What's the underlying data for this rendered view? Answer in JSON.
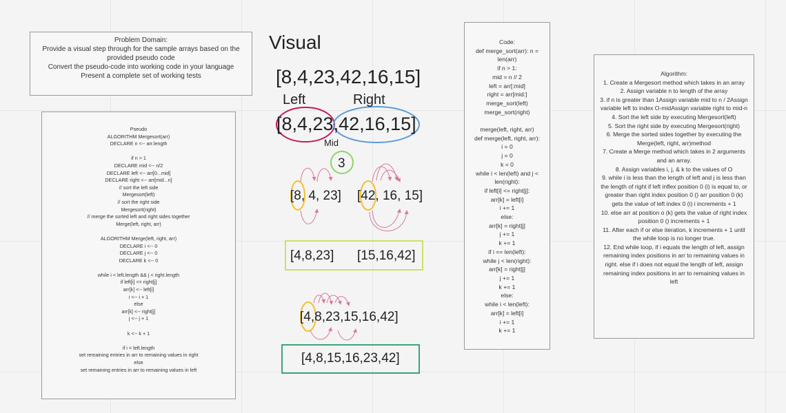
{
  "problem_domain": {
    "lines": [
      "Problem Domain:",
      "Provide a visual step through for the sample arrays based on the",
      "provided pseudo code",
      "Convert the pseudo-code into working code in your language",
      "Present a complete set of working tests"
    ]
  },
  "pseudo": {
    "lines": [
      "Pseudo",
      "ALGORITHM Mergesort(arr)",
      "DECLARE n <-- arr.length",
      "",
      "if n > 1",
      "DECLARE mid <-- n/2",
      "DECLARE left <-- arr[0...mid]",
      "DECLARE right <-- arr[mid...n]",
      "// sort the left side",
      "Mergesort(left)",
      "// sort the right side",
      "Mergesort(right)",
      "// merge the sorted left and right sides together",
      "Merge(left, right, arr)",
      "",
      "ALGORITHM Merge(left, right, arr)",
      "DECLARE i <-- 0",
      "DECLARE j <-- 0",
      "DECLARE k <-- 0",
      "",
      "while i < left.length && j < right.length",
      "if left[i] <= right[j]",
      "arr[k] <-- left[i]",
      "i <-- i + 1",
      "else",
      "arr[k] <-- right[j]",
      "j <-- j + 1",
      "",
      "k <-- k + 1",
      "",
      "if i = left.length",
      "set remaining entries in arr to remaining values in right",
      "else",
      "set remaining entries in arr to remaining values in left"
    ]
  },
  "visual": {
    "title": "Visual",
    "array": "[8,4,23,42,16,15]",
    "left_label": "Left",
    "right_label": "Right",
    "array_split": "[8,4,23,42,16,15]",
    "mid_label": "Mid",
    "mid_value": "3",
    "left_half": "[8, 4, 23]",
    "right_half": "[42, 16, 15]",
    "sorted_left": "[4,8,23]",
    "sorted_right": "[15,16,42]",
    "merged_raw": "[4,8,23,15,16,42]",
    "final": "[4,8,15,16,23,42]",
    "colors": {
      "left_circle": "#c2185b",
      "right_circle": "#5b9bd5",
      "mid_circle": "#8ed36a",
      "pointer_circle": "#f2c12e",
      "arrows": "#d9789a",
      "sorted_box": "#c9e265",
      "final_box": "#3aa678"
    }
  },
  "code": {
    "lines": [
      "Code:",
      "def merge_sort(arr): n =",
      "len(arr)",
      "if n > 1:",
      "mid = n // 2",
      "left = arr[:mid]",
      "right = arr[mid:]",
      "merge_sort(left)",
      "merge_sort(right)",
      "",
      "merge(left, right, arr)",
      "def merge(left, right, arr):",
      "i = 0",
      "j = 0",
      "k = 0",
      "while i < len(left) and j <",
      "len(right):",
      "if left[i] <= right[j]:",
      "arr[k] = left[i]",
      "i += 1",
      "else:",
      "arr[k] = right[j]",
      "j += 1",
      "k += 1",
      "if i == len(left):",
      "while j < len(right):",
      "arr[k] = right[j]",
      "j += 1",
      "k += 1",
      "else:",
      "while i < len(left):",
      "arr[k] = left[i]",
      "i += 1",
      "k += 1"
    ]
  },
  "algorithm": {
    "lines": [
      "Algorithm:",
      "1. Create a Mergesort method which takes in an array",
      "2. Assign variable n to length of the array",
      "3. if n is greater than 1Assign variable mid to n / 2Assign variable left to index O-midAssign variable right to mid-n",
      "4. Sort the left side by executing Mergesort(left)",
      "5. Sort the right side by executing Mergesort(right)",
      "6. Merge the sorted sides together by executing the Merge(left, right, arr)method",
      "7. Create a Merge method which takes in 2 arguments and an array.",
      "8. Assign variables i, j, & k to the values of O",
      "9. while i is less than the length of left and j is less than the length of right if left inflex position 0 (i) is equal to, or greater than right index position 0 () arr position 0 (k) gets the value of left index 0 (i) i increments + 1",
      "10. else arr at position o (k) gets the value of right index position 0 () increments + 1",
      "11. After each if or else iteration, k increments + 1 until the while loop is no longer true.",
      "12. End while loop, if i equals the length of left, assign remaining index positions in arr to remaining values in right. else if i does not equal the length of left, assign remaining index positions in arr to remaining values in left"
    ]
  }
}
